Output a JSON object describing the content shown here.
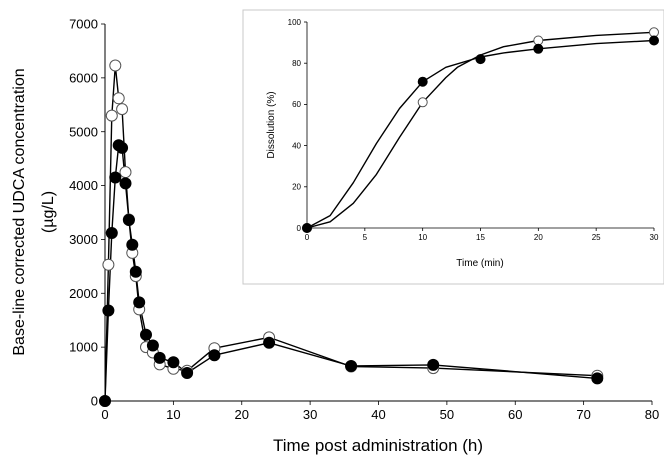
{
  "chart_data": [
    {
      "type": "line",
      "xlabel": "Time post administration (h)",
      "ylabel_line1": "Base-line corrected UDCA concentration",
      "ylabel_line2": "(µg/L)",
      "xlim": [
        0,
        80
      ],
      "ylim": [
        0,
        7000
      ],
      "xticks": [
        0,
        10,
        20,
        30,
        40,
        50,
        60,
        70,
        80
      ],
      "yticks": [
        0,
        1000,
        2000,
        3000,
        4000,
        5000,
        6000,
        7000
      ],
      "grid": false,
      "marker_colors": {
        "open": "#ffffff",
        "filled": "#000000"
      },
      "series": [
        {
          "marker": "open",
          "points": [
            [
              0,
              0
            ],
            [
              0.5,
              2530
            ],
            [
              1,
              5300
            ],
            [
              1.5,
              6230
            ],
            [
              2,
              5620
            ],
            [
              2.5,
              5420
            ],
            [
              3,
              4250
            ],
            [
              3.5,
              3370
            ],
            [
              4,
              2750
            ],
            [
              4.5,
              2320
            ],
            [
              5,
              1700
            ],
            [
              6,
              1000
            ],
            [
              7,
              900
            ],
            [
              8,
              680
            ],
            [
              10,
              600
            ],
            [
              12,
              560
            ],
            [
              16,
              980
            ],
            [
              24,
              1180
            ],
            [
              36,
              640
            ],
            [
              48,
              610
            ],
            [
              72,
              470
            ]
          ]
        },
        {
          "marker": "filled",
          "points": [
            [
              0,
              0
            ],
            [
              0.5,
              1680
            ],
            [
              1,
              3120
            ],
            [
              1.5,
              4150
            ],
            [
              2,
              4750
            ],
            [
              2.5,
              4700
            ],
            [
              3,
              4040
            ],
            [
              3.5,
              3360
            ],
            [
              4,
              2900
            ],
            [
              4.5,
              2400
            ],
            [
              5,
              1830
            ],
            [
              6,
              1230
            ],
            [
              7,
              1030
            ],
            [
              8,
              800
            ],
            [
              10,
              720
            ],
            [
              12,
              520
            ],
            [
              16,
              850
            ],
            [
              24,
              1080
            ],
            [
              36,
              650
            ],
            [
              48,
              670
            ],
            [
              72,
              420
            ]
          ]
        }
      ]
    },
    {
      "type": "line",
      "xlabel": "Time (min)",
      "ylabel": "Dissolution (%)",
      "xlim": [
        0,
        30
      ],
      "ylim": [
        0,
        100
      ],
      "xticks": [
        0,
        5,
        10,
        15,
        20,
        25,
        30
      ],
      "yticks": [
        0,
        20,
        40,
        60,
        80,
        100
      ],
      "grid": false,
      "series": [
        {
          "marker": "open",
          "points": [
            [
              0,
              0
            ],
            [
              10,
              61
            ],
            [
              15,
              82
            ],
            [
              20,
              91
            ],
            [
              30,
              95
            ]
          ],
          "curve": [
            [
              0,
              0
            ],
            [
              2,
              3
            ],
            [
              4,
              12
            ],
            [
              6,
              26
            ],
            [
              8,
              44
            ],
            [
              10,
              61
            ],
            [
              12,
              73
            ],
            [
              13,
              78
            ],
            [
              15,
              84
            ],
            [
              17,
              88
            ],
            [
              20,
              91
            ],
            [
              25,
              93.5
            ],
            [
              30,
              95
            ]
          ]
        },
        {
          "marker": "filled",
          "points": [
            [
              0,
              0
            ],
            [
              10,
              71
            ],
            [
              15,
              82
            ],
            [
              20,
              87
            ],
            [
              30,
              91
            ]
          ],
          "curve": [
            [
              0,
              0
            ],
            [
              2,
              6
            ],
            [
              4,
              22
            ],
            [
              6,
              41
            ],
            [
              8,
              58
            ],
            [
              10,
              71
            ],
            [
              12,
              78
            ],
            [
              15,
              83
            ],
            [
              17,
              85
            ],
            [
              20,
              87
            ],
            [
              25,
              89.5
            ],
            [
              30,
              91
            ]
          ]
        }
      ]
    }
  ]
}
